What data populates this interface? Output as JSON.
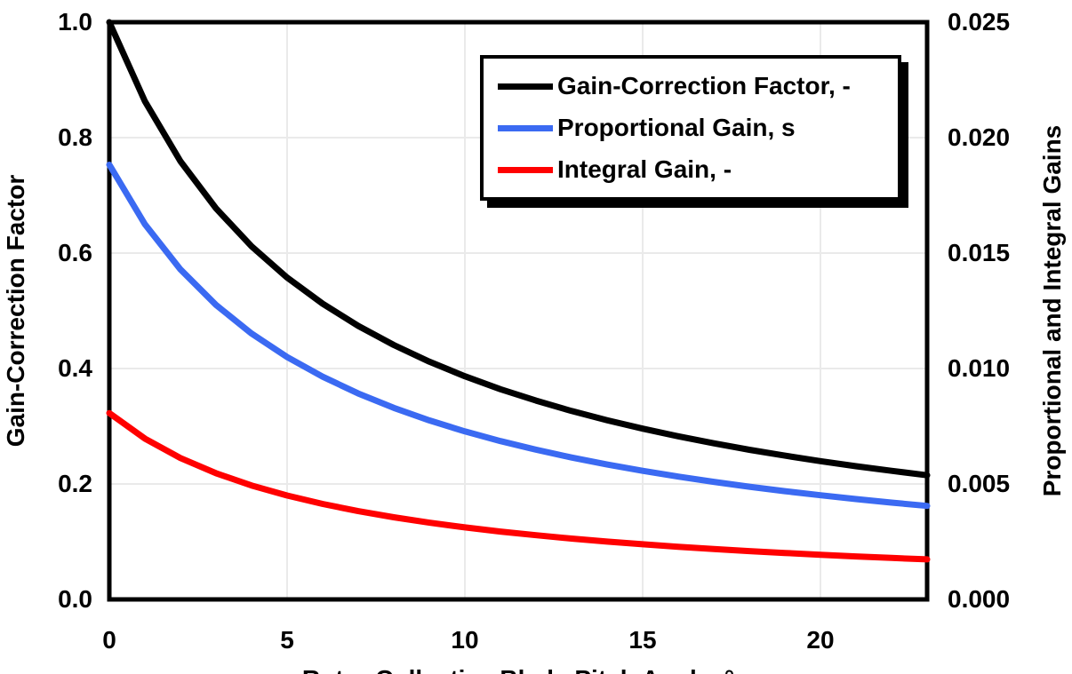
{
  "chart_data": {
    "type": "line",
    "x": [
      0,
      1,
      2,
      3,
      4,
      5,
      6,
      7,
      8,
      9,
      10,
      11,
      12,
      13,
      14,
      15,
      16,
      17,
      18,
      19,
      20,
      21,
      22,
      23
    ],
    "series": [
      {
        "name": "Gain-Correction Factor, -",
        "axis": "left",
        "color": "#000000",
        "values": [
          1.0,
          0.8631,
          0.7591,
          0.6775,
          0.6117,
          0.5576,
          0.5123,
          0.4738,
          0.4407,
          0.4119,
          0.3866,
          0.3642,
          0.3444,
          0.3265,
          0.3104,
          0.2959,
          0.2826,
          0.2704,
          0.2593,
          0.2491,
          0.2396,
          0.2308,
          0.2227,
          0.2151
        ]
      },
      {
        "name": "Proportional Gain, s",
        "axis": "right",
        "color": "#3B6AF2",
        "values": [
          0.018827,
          0.016249,
          0.014291,
          0.012755,
          0.011516,
          0.010498,
          0.009645,
          0.00892,
          0.008297,
          0.007755,
          0.007278,
          0.006857,
          0.006483,
          0.006147,
          0.005844,
          0.00557,
          0.00532,
          0.005091,
          0.004881,
          0.004689,
          0.004511,
          0.004345,
          0.004192,
          0.004049
        ]
      },
      {
        "name": "Integral Gain, -",
        "axis": "right",
        "color": "#FF0000",
        "values": [
          0.008069,
          0.006964,
          0.006125,
          0.005467,
          0.004935,
          0.0045,
          0.004134,
          0.003823,
          0.003556,
          0.003323,
          0.003119,
          0.002938,
          0.002779,
          0.002634,
          0.002505,
          0.002387,
          0.00228,
          0.002182,
          0.002092,
          0.00201,
          0.001933,
          0.001862,
          0.001796,
          0.001736
        ]
      }
    ],
    "xlabel": "Rotor Collective Blade Pitch Angle, °",
    "x_ticks": [
      0,
      5,
      10,
      15,
      20
    ],
    "xlim": [
      0,
      23
    ],
    "left_axis": {
      "label": "Gain-Correction Factor",
      "ticks": [
        "0.0",
        "0.2",
        "0.4",
        "0.6",
        "0.8",
        "1.0"
      ],
      "tick_values": [
        0,
        0.2,
        0.4,
        0.6,
        0.8,
        1.0
      ],
      "lim": [
        0,
        1
      ]
    },
    "right_axis": {
      "label": "Proportional and Integral Gains",
      "ticks": [
        "0.000",
        "0.005",
        "0.010",
        "0.015",
        "0.020",
        "0.025"
      ],
      "tick_values": [
        0,
        0.005,
        0.01,
        0.015,
        0.02,
        0.025
      ],
      "lim": [
        0,
        0.025
      ]
    },
    "grid": true,
    "legend_position": "top-center",
    "legend_entries": [
      {
        "label": "Gain-Correction Factor, -",
        "color": "#000000"
      },
      {
        "label": "Proportional Gain, s",
        "color": "#3B6AF2"
      },
      {
        "label": "Integral Gain, -",
        "color": "#FF0000"
      }
    ],
    "colors": {
      "gridline": "#EAEAEA",
      "plot_border": "#000000",
      "text": "#000000",
      "background": "#FFFFFF"
    }
  }
}
